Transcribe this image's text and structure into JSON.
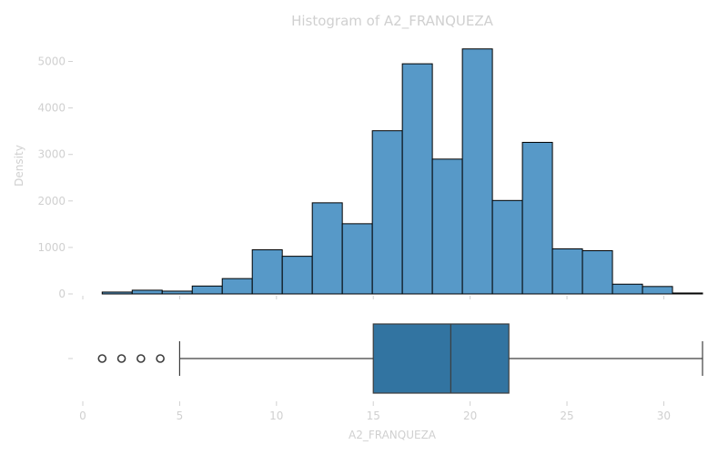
{
  "chart_data": {
    "type": "bar",
    "title": "Histogram of A2_FRANQUEZA",
    "xlabel": "A2_FRANQUEZA",
    "ylabel": "Density",
    "xlim": [
      0,
      32
    ],
    "ylim": [
      0,
      5500
    ],
    "x_ticks": [
      0,
      5,
      10,
      15,
      20,
      25,
      30
    ],
    "x_tick_labels": [
      "0",
      "5",
      "10",
      "15",
      "20",
      "25",
      "30"
    ],
    "y_ticks": [
      0,
      1000,
      2000,
      3000,
      4000,
      5000
    ],
    "y_tick_labels": [
      "0",
      "1000",
      "2000",
      "3000",
      "4000",
      "5000"
    ],
    "bin_edges": [
      1,
      2.55,
      4.1,
      5.65,
      7.2,
      8.75,
      10.3,
      11.85,
      13.4,
      14.95,
      16.5,
      18.05,
      19.6,
      21.15,
      22.7,
      24.25,
      25.8,
      27.35,
      28.9,
      30.45,
      32
    ],
    "values": [
      40,
      80,
      60,
      170,
      330,
      950,
      810,
      1960,
      1510,
      3510,
      4950,
      2900,
      5270,
      2010,
      3260,
      970,
      930,
      210,
      160,
      20
    ],
    "bar_color": "#5799c8",
    "grid": false,
    "boxplot": {
      "min": 5,
      "q1": 15,
      "median": 19,
      "q3": 22,
      "max": 32,
      "outliers": [
        1,
        2,
        3,
        4
      ],
      "box_color": "#3274a1"
    }
  }
}
